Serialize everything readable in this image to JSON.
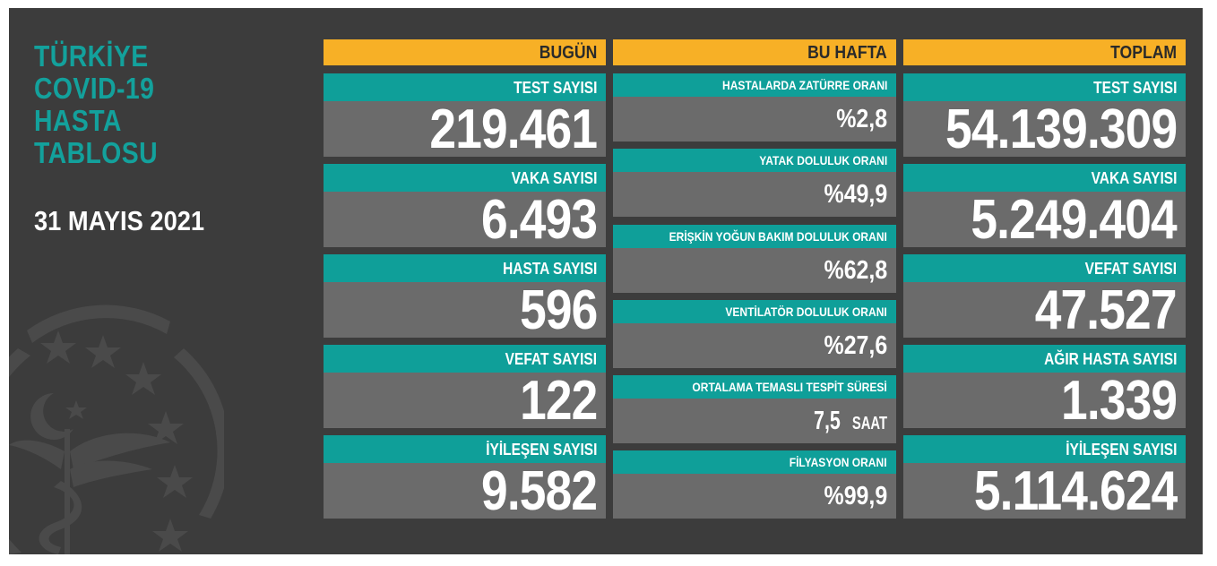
{
  "title": [
    "TÜRKİYE",
    "COVID-19",
    "HASTA",
    "TABLOSU"
  ],
  "date": "31 MAYIS 2021",
  "columns": {
    "today": {
      "header": "BUGÜN",
      "items": [
        {
          "label": "TEST SAYISI",
          "value": "219.461"
        },
        {
          "label": "VAKA SAYISI",
          "value": "6.493"
        },
        {
          "label": "HASTA SAYISI",
          "value": "596"
        },
        {
          "label": "VEFAT SAYISI",
          "value": "122"
        },
        {
          "label": "İYİLEŞEN SAYISI",
          "value": "9.582"
        }
      ]
    },
    "week": {
      "header": "BU HAFTA",
      "items": [
        {
          "label": "HASTALARDA ZATÜRRE ORANI",
          "value": "%2,8"
        },
        {
          "label": "YATAK DOLULUK ORANI",
          "value": "%49,9"
        },
        {
          "label": "ERİŞKİN YOĞUN BAKIM DOLULUK ORANI",
          "value": "%62,8"
        },
        {
          "label": "VENTİLATÖR DOLULUK ORANI",
          "value": "%27,6"
        },
        {
          "label": "ORTALAMA TEMASLI TESPİT SÜRESİ",
          "value": "7,5",
          "unit": "SAAT"
        },
        {
          "label": "FİLYASYON ORANI",
          "value": "%99,9"
        }
      ]
    },
    "total": {
      "header": "TOPLAM",
      "items": [
        {
          "label": "TEST SAYISI",
          "value": "54.139.309"
        },
        {
          "label": "VAKA SAYISI",
          "value": "5.249.404"
        },
        {
          "label": "VEFAT SAYISI",
          "value": "47.527"
        },
        {
          "label": "AĞIR HASTA SAYISI",
          "value": "1.339"
        },
        {
          "label": "İYİLEŞEN SAYISI",
          "value": "5.114.624"
        }
      ]
    }
  },
  "colors": {
    "background": "#3c3c3c",
    "header": "#f7b026",
    "label": "#0f9f99",
    "value_box": "#6b6b6b",
    "title": "#13a19c"
  }
}
